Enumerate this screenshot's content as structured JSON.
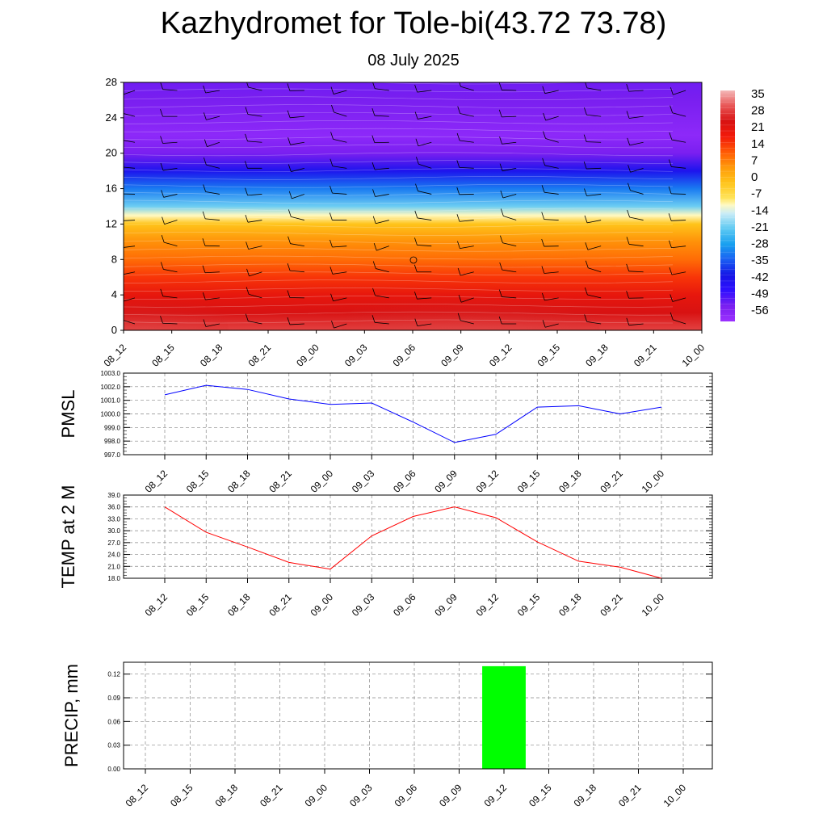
{
  "header": {
    "title": "Kazhydromet for Tole-bi(43.72 73.78)",
    "subtitle": "08 July 2025"
  },
  "time_labels": [
    "08_12",
    "08_15",
    "08_18",
    "08_21",
    "09_00",
    "09_03",
    "09_06",
    "09_09",
    "09_12",
    "09_15",
    "09_18",
    "09_21",
    "10_00"
  ],
  "chart_data": [
    {
      "type": "heatmap",
      "title": "",
      "ylim": [
        0,
        28
      ],
      "y_ticks": [
        "0",
        "4",
        "8",
        "12",
        "16",
        "20",
        "24",
        "28"
      ],
      "colorbar": {
        "labels": [
          "35",
          "28",
          "21",
          "14",
          "7",
          "0",
          "-7",
          "-14",
          "-21",
          "-28",
          "-35",
          "-42",
          "-49",
          "-56"
        ],
        "range": [
          -63,
          42
        ]
      },
      "levels_temperature_profile": [
        {
          "level": 0,
          "temp": 33
        },
        {
          "level": 2,
          "temp": 28
        },
        {
          "level": 4,
          "temp": 24
        },
        {
          "level": 6,
          "temp": 18
        },
        {
          "level": 8,
          "temp": 12
        },
        {
          "level": 10,
          "temp": 8
        },
        {
          "level": 12,
          "temp": 0
        },
        {
          "level": 13,
          "temp": -10
        },
        {
          "level": 14,
          "temp": -20
        },
        {
          "level": 16,
          "temp": -32
        },
        {
          "level": 18,
          "temp": -44
        },
        {
          "level": 20,
          "temp": -56
        },
        {
          "level": 22,
          "temp": -60
        },
        {
          "level": 24,
          "temp": -58
        },
        {
          "level": 26,
          "temp": -56
        },
        {
          "level": 28,
          "temp": -55
        }
      ]
    },
    {
      "type": "line",
      "ylabel": "PMSL",
      "ylim": [
        997.0,
        1003.0
      ],
      "y_ticks": [
        "997.0",
        "998.0",
        "999.0",
        "1000.0",
        "1001.0",
        "1002.0",
        "1003.0"
      ],
      "color": "#0000ff",
      "values": [
        1001.4,
        1002.1,
        1001.8,
        1001.1,
        1000.7,
        1000.8,
        999.4,
        997.9,
        998.5,
        1000.5,
        1000.6,
        1000.0,
        1000.5
      ]
    },
    {
      "type": "line",
      "ylabel": "TEMP at 2 M",
      "ylim": [
        18.0,
        39.0
      ],
      "y_ticks": [
        "18.0",
        "21.0",
        "24.0",
        "27.0",
        "30.0",
        "33.0",
        "36.0",
        "39.0"
      ],
      "color": "#ff0000",
      "values": [
        36.0,
        29.6,
        25.9,
        22.0,
        20.3,
        28.7,
        33.6,
        36.0,
        33.3,
        27.2,
        22.3,
        20.8,
        18.0
      ]
    },
    {
      "type": "bar",
      "ylabel": "PRECIP, mm",
      "ylim": [
        0.0,
        0.135
      ],
      "y_ticks": [
        "0.00",
        "0.03",
        "0.06",
        "0.09",
        "0.12"
      ],
      "color": "#00ff00",
      "values": [
        0,
        0,
        0,
        0,
        0,
        0,
        0,
        0,
        0.13,
        0,
        0,
        0,
        0
      ]
    }
  ]
}
